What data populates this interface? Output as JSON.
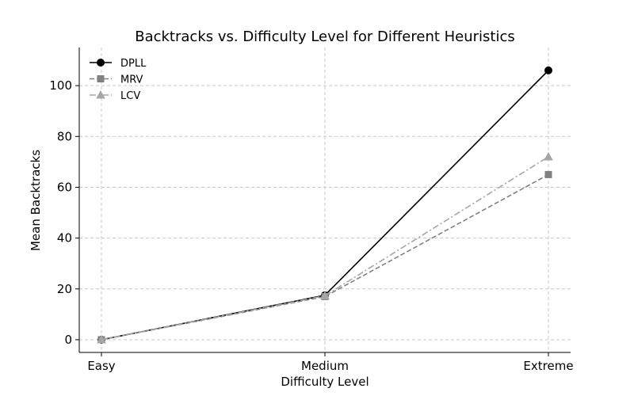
{
  "chart_data": {
    "type": "line",
    "title": "Backtracks vs. Difficulty Level for Different Heuristics",
    "xlabel": "Difficulty Level",
    "ylabel": "Mean Backtracks",
    "categories": [
      "Easy",
      "Medium",
      "Extreme"
    ],
    "ylim": [
      -5,
      115
    ],
    "yticks": [
      0,
      20,
      40,
      60,
      80,
      100
    ],
    "grid": true,
    "legend_position": "top-left",
    "series": [
      {
        "name": "DPLL",
        "values": [
          0,
          17.5,
          106
        ],
        "color": "#000000",
        "marker": "circle",
        "line_style": "solid"
      },
      {
        "name": "MRV",
        "values": [
          0,
          17,
          65
        ],
        "color": "#808080",
        "marker": "square",
        "line_style": "dashed"
      },
      {
        "name": "LCV",
        "values": [
          0,
          17.3,
          72
        ],
        "color": "#a6a6a6",
        "marker": "triangle",
        "line_style": "dashdot"
      }
    ]
  }
}
